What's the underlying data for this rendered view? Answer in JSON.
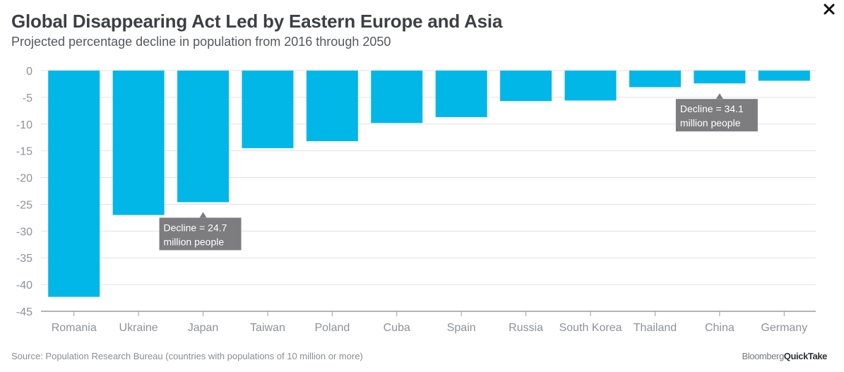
{
  "header": {
    "title": "Global Disappearing Act Led by Eastern Europe and Asia",
    "subtitle": "Projected percentage decline in population from 2016 through 2050"
  },
  "footer": {
    "source": "Source: Population Research Bureau (countries with populations of 10 million or more)",
    "brand_part1": "Bloomberg",
    "brand_part2": "QuickTake"
  },
  "colors": {
    "bar": "#00b7e8",
    "annotation": "#7d7d80",
    "grid": "#dfe0e2",
    "axis": "#9a9ca0"
  },
  "chart_data": {
    "type": "bar",
    "categories": [
      "Romania",
      "Ukraine",
      "Japan",
      "Taiwan",
      "Poland",
      "Cuba",
      "Spain",
      "Russia",
      "South Korea",
      "Thailand",
      "China",
      "Germany"
    ],
    "values": [
      -42.3,
      -27.0,
      -24.6,
      -14.5,
      -13.2,
      -9.8,
      -8.7,
      -5.7,
      -5.6,
      -3.1,
      -2.4,
      -1.9
    ],
    "ylim": [
      -45,
      0
    ],
    "yticks": [
      0,
      -5,
      -10,
      -15,
      -20,
      -25,
      -30,
      -35,
      -40,
      -45
    ],
    "grid": true,
    "annotations": [
      {
        "category": "Japan",
        "lines": [
          "Decline = 24.7",
          "million people"
        ]
      },
      {
        "category": "China",
        "lines": [
          "Decline = 34.1",
          "million people"
        ]
      }
    ]
  }
}
